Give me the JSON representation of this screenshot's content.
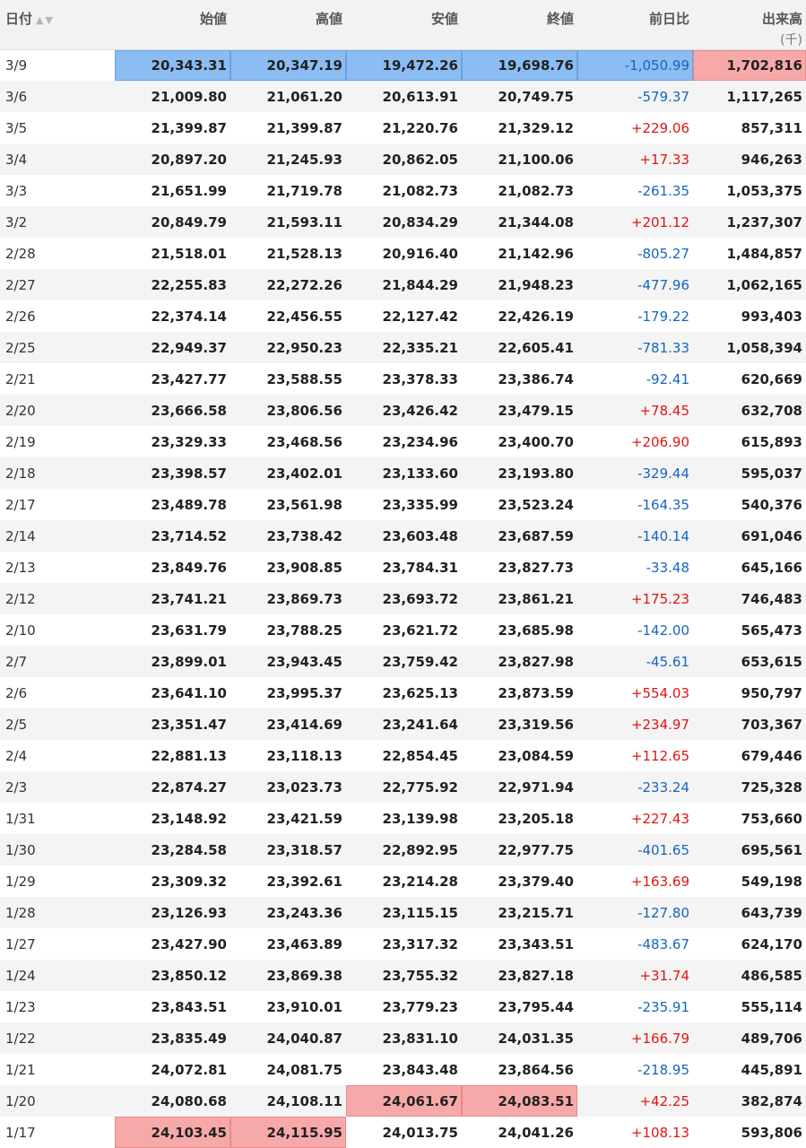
{
  "table": {
    "headers": {
      "date": "日付",
      "open": "始値",
      "high": "高値",
      "low": "安値",
      "close": "終値",
      "change": "前日比",
      "volume": "出来高",
      "volume_unit": "(千)"
    },
    "colors": {
      "positive": "#e01414",
      "negative": "#1565c0",
      "highlight_blue": "#8bbdf2",
      "highlight_red": "#f7a9a9"
    },
    "rows": [
      {
        "date": "3/9",
        "open": "20,343.31",
        "high": "20,347.19",
        "low": "19,472.26",
        "close": "19,698.76",
        "change": "-1,050.99",
        "volume": "1,702,816",
        "hl": {
          "open": "blue",
          "high": "blue",
          "low": "blue",
          "close": "blue",
          "change": "blue",
          "volume": "red"
        }
      },
      {
        "date": "3/6",
        "open": "21,009.80",
        "high": "21,061.20",
        "low": "20,613.91",
        "close": "20,749.75",
        "change": "-579.37",
        "volume": "1,117,265"
      },
      {
        "date": "3/5",
        "open": "21,399.87",
        "high": "21,399.87",
        "low": "21,220.76",
        "close": "21,329.12",
        "change": "+229.06",
        "volume": "857,311"
      },
      {
        "date": "3/4",
        "open": "20,897.20",
        "high": "21,245.93",
        "low": "20,862.05",
        "close": "21,100.06",
        "change": "+17.33",
        "volume": "946,263"
      },
      {
        "date": "3/3",
        "open": "21,651.99",
        "high": "21,719.78",
        "low": "21,082.73",
        "close": "21,082.73",
        "change": "-261.35",
        "volume": "1,053,375"
      },
      {
        "date": "3/2",
        "open": "20,849.79",
        "high": "21,593.11",
        "low": "20,834.29",
        "close": "21,344.08",
        "change": "+201.12",
        "volume": "1,237,307"
      },
      {
        "date": "2/28",
        "open": "21,518.01",
        "high": "21,528.13",
        "low": "20,916.40",
        "close": "21,142.96",
        "change": "-805.27",
        "volume": "1,484,857"
      },
      {
        "date": "2/27",
        "open": "22,255.83",
        "high": "22,272.26",
        "low": "21,844.29",
        "close": "21,948.23",
        "change": "-477.96",
        "volume": "1,062,165"
      },
      {
        "date": "2/26",
        "open": "22,374.14",
        "high": "22,456.55",
        "low": "22,127.42",
        "close": "22,426.19",
        "change": "-179.22",
        "volume": "993,403"
      },
      {
        "date": "2/25",
        "open": "22,949.37",
        "high": "22,950.23",
        "low": "22,335.21",
        "close": "22,605.41",
        "change": "-781.33",
        "volume": "1,058,394"
      },
      {
        "date": "2/21",
        "open": "23,427.77",
        "high": "23,588.55",
        "low": "23,378.33",
        "close": "23,386.74",
        "change": "-92.41",
        "volume": "620,669"
      },
      {
        "date": "2/20",
        "open": "23,666.58",
        "high": "23,806.56",
        "low": "23,426.42",
        "close": "23,479.15",
        "change": "+78.45",
        "volume": "632,708"
      },
      {
        "date": "2/19",
        "open": "23,329.33",
        "high": "23,468.56",
        "low": "23,234.96",
        "close": "23,400.70",
        "change": "+206.90",
        "volume": "615,893"
      },
      {
        "date": "2/18",
        "open": "23,398.57",
        "high": "23,402.01",
        "low": "23,133.60",
        "close": "23,193.80",
        "change": "-329.44",
        "volume": "595,037"
      },
      {
        "date": "2/17",
        "open": "23,489.78",
        "high": "23,561.98",
        "low": "23,335.99",
        "close": "23,523.24",
        "change": "-164.35",
        "volume": "540,376"
      },
      {
        "date": "2/14",
        "open": "23,714.52",
        "high": "23,738.42",
        "low": "23,603.48",
        "close": "23,687.59",
        "change": "-140.14",
        "volume": "691,046"
      },
      {
        "date": "2/13",
        "open": "23,849.76",
        "high": "23,908.85",
        "low": "23,784.31",
        "close": "23,827.73",
        "change": "-33.48",
        "volume": "645,166"
      },
      {
        "date": "2/12",
        "open": "23,741.21",
        "high": "23,869.73",
        "low": "23,693.72",
        "close": "23,861.21",
        "change": "+175.23",
        "volume": "746,483"
      },
      {
        "date": "2/10",
        "open": "23,631.79",
        "high": "23,788.25",
        "low": "23,621.72",
        "close": "23,685.98",
        "change": "-142.00",
        "volume": "565,473"
      },
      {
        "date": "2/7",
        "open": "23,899.01",
        "high": "23,943.45",
        "low": "23,759.42",
        "close": "23,827.98",
        "change": "-45.61",
        "volume": "653,615"
      },
      {
        "date": "2/6",
        "open": "23,641.10",
        "high": "23,995.37",
        "low": "23,625.13",
        "close": "23,873.59",
        "change": "+554.03",
        "volume": "950,797"
      },
      {
        "date": "2/5",
        "open": "23,351.47",
        "high": "23,414.69",
        "low": "23,241.64",
        "close": "23,319.56",
        "change": "+234.97",
        "volume": "703,367"
      },
      {
        "date": "2/4",
        "open": "22,881.13",
        "high": "23,118.13",
        "low": "22,854.45",
        "close": "23,084.59",
        "change": "+112.65",
        "volume": "679,446"
      },
      {
        "date": "2/3",
        "open": "22,874.27",
        "high": "23,023.73",
        "low": "22,775.92",
        "close": "22,971.94",
        "change": "-233.24",
        "volume": "725,328"
      },
      {
        "date": "1/31",
        "open": "23,148.92",
        "high": "23,421.59",
        "low": "23,139.98",
        "close": "23,205.18",
        "change": "+227.43",
        "volume": "753,660"
      },
      {
        "date": "1/30",
        "open": "23,284.58",
        "high": "23,318.57",
        "low": "22,892.95",
        "close": "22,977.75",
        "change": "-401.65",
        "volume": "695,561"
      },
      {
        "date": "1/29",
        "open": "23,309.32",
        "high": "23,392.61",
        "low": "23,214.28",
        "close": "23,379.40",
        "change": "+163.69",
        "volume": "549,198"
      },
      {
        "date": "1/28",
        "open": "23,126.93",
        "high": "23,243.36",
        "low": "23,115.15",
        "close": "23,215.71",
        "change": "-127.80",
        "volume": "643,739"
      },
      {
        "date": "1/27",
        "open": "23,427.90",
        "high": "23,463.89",
        "low": "23,317.32",
        "close": "23,343.51",
        "change": "-483.67",
        "volume": "624,170"
      },
      {
        "date": "1/24",
        "open": "23,850.12",
        "high": "23,869.38",
        "low": "23,755.32",
        "close": "23,827.18",
        "change": "+31.74",
        "volume": "486,585"
      },
      {
        "date": "1/23",
        "open": "23,843.51",
        "high": "23,910.01",
        "low": "23,779.23",
        "close": "23,795.44",
        "change": "-235.91",
        "volume": "555,114"
      },
      {
        "date": "1/22",
        "open": "23,835.49",
        "high": "24,040.87",
        "low": "23,831.10",
        "close": "24,031.35",
        "change": "+166.79",
        "volume": "489,706"
      },
      {
        "date": "1/21",
        "open": "24,072.81",
        "high": "24,081.75",
        "low": "23,843.48",
        "close": "23,864.56",
        "change": "-218.95",
        "volume": "445,891"
      },
      {
        "date": "1/20",
        "open": "24,080.68",
        "high": "24,108.11",
        "low": "24,061.67",
        "close": "24,083.51",
        "change": "+42.25",
        "volume": "382,874",
        "hl": {
          "low": "red",
          "close": "red"
        }
      },
      {
        "date": "1/17",
        "open": "24,103.45",
        "high": "24,115.95",
        "low": "24,013.75",
        "close": "24,041.26",
        "change": "+108.13",
        "volume": "593,806",
        "hl": {
          "open": "red",
          "high": "red"
        }
      }
    ]
  }
}
